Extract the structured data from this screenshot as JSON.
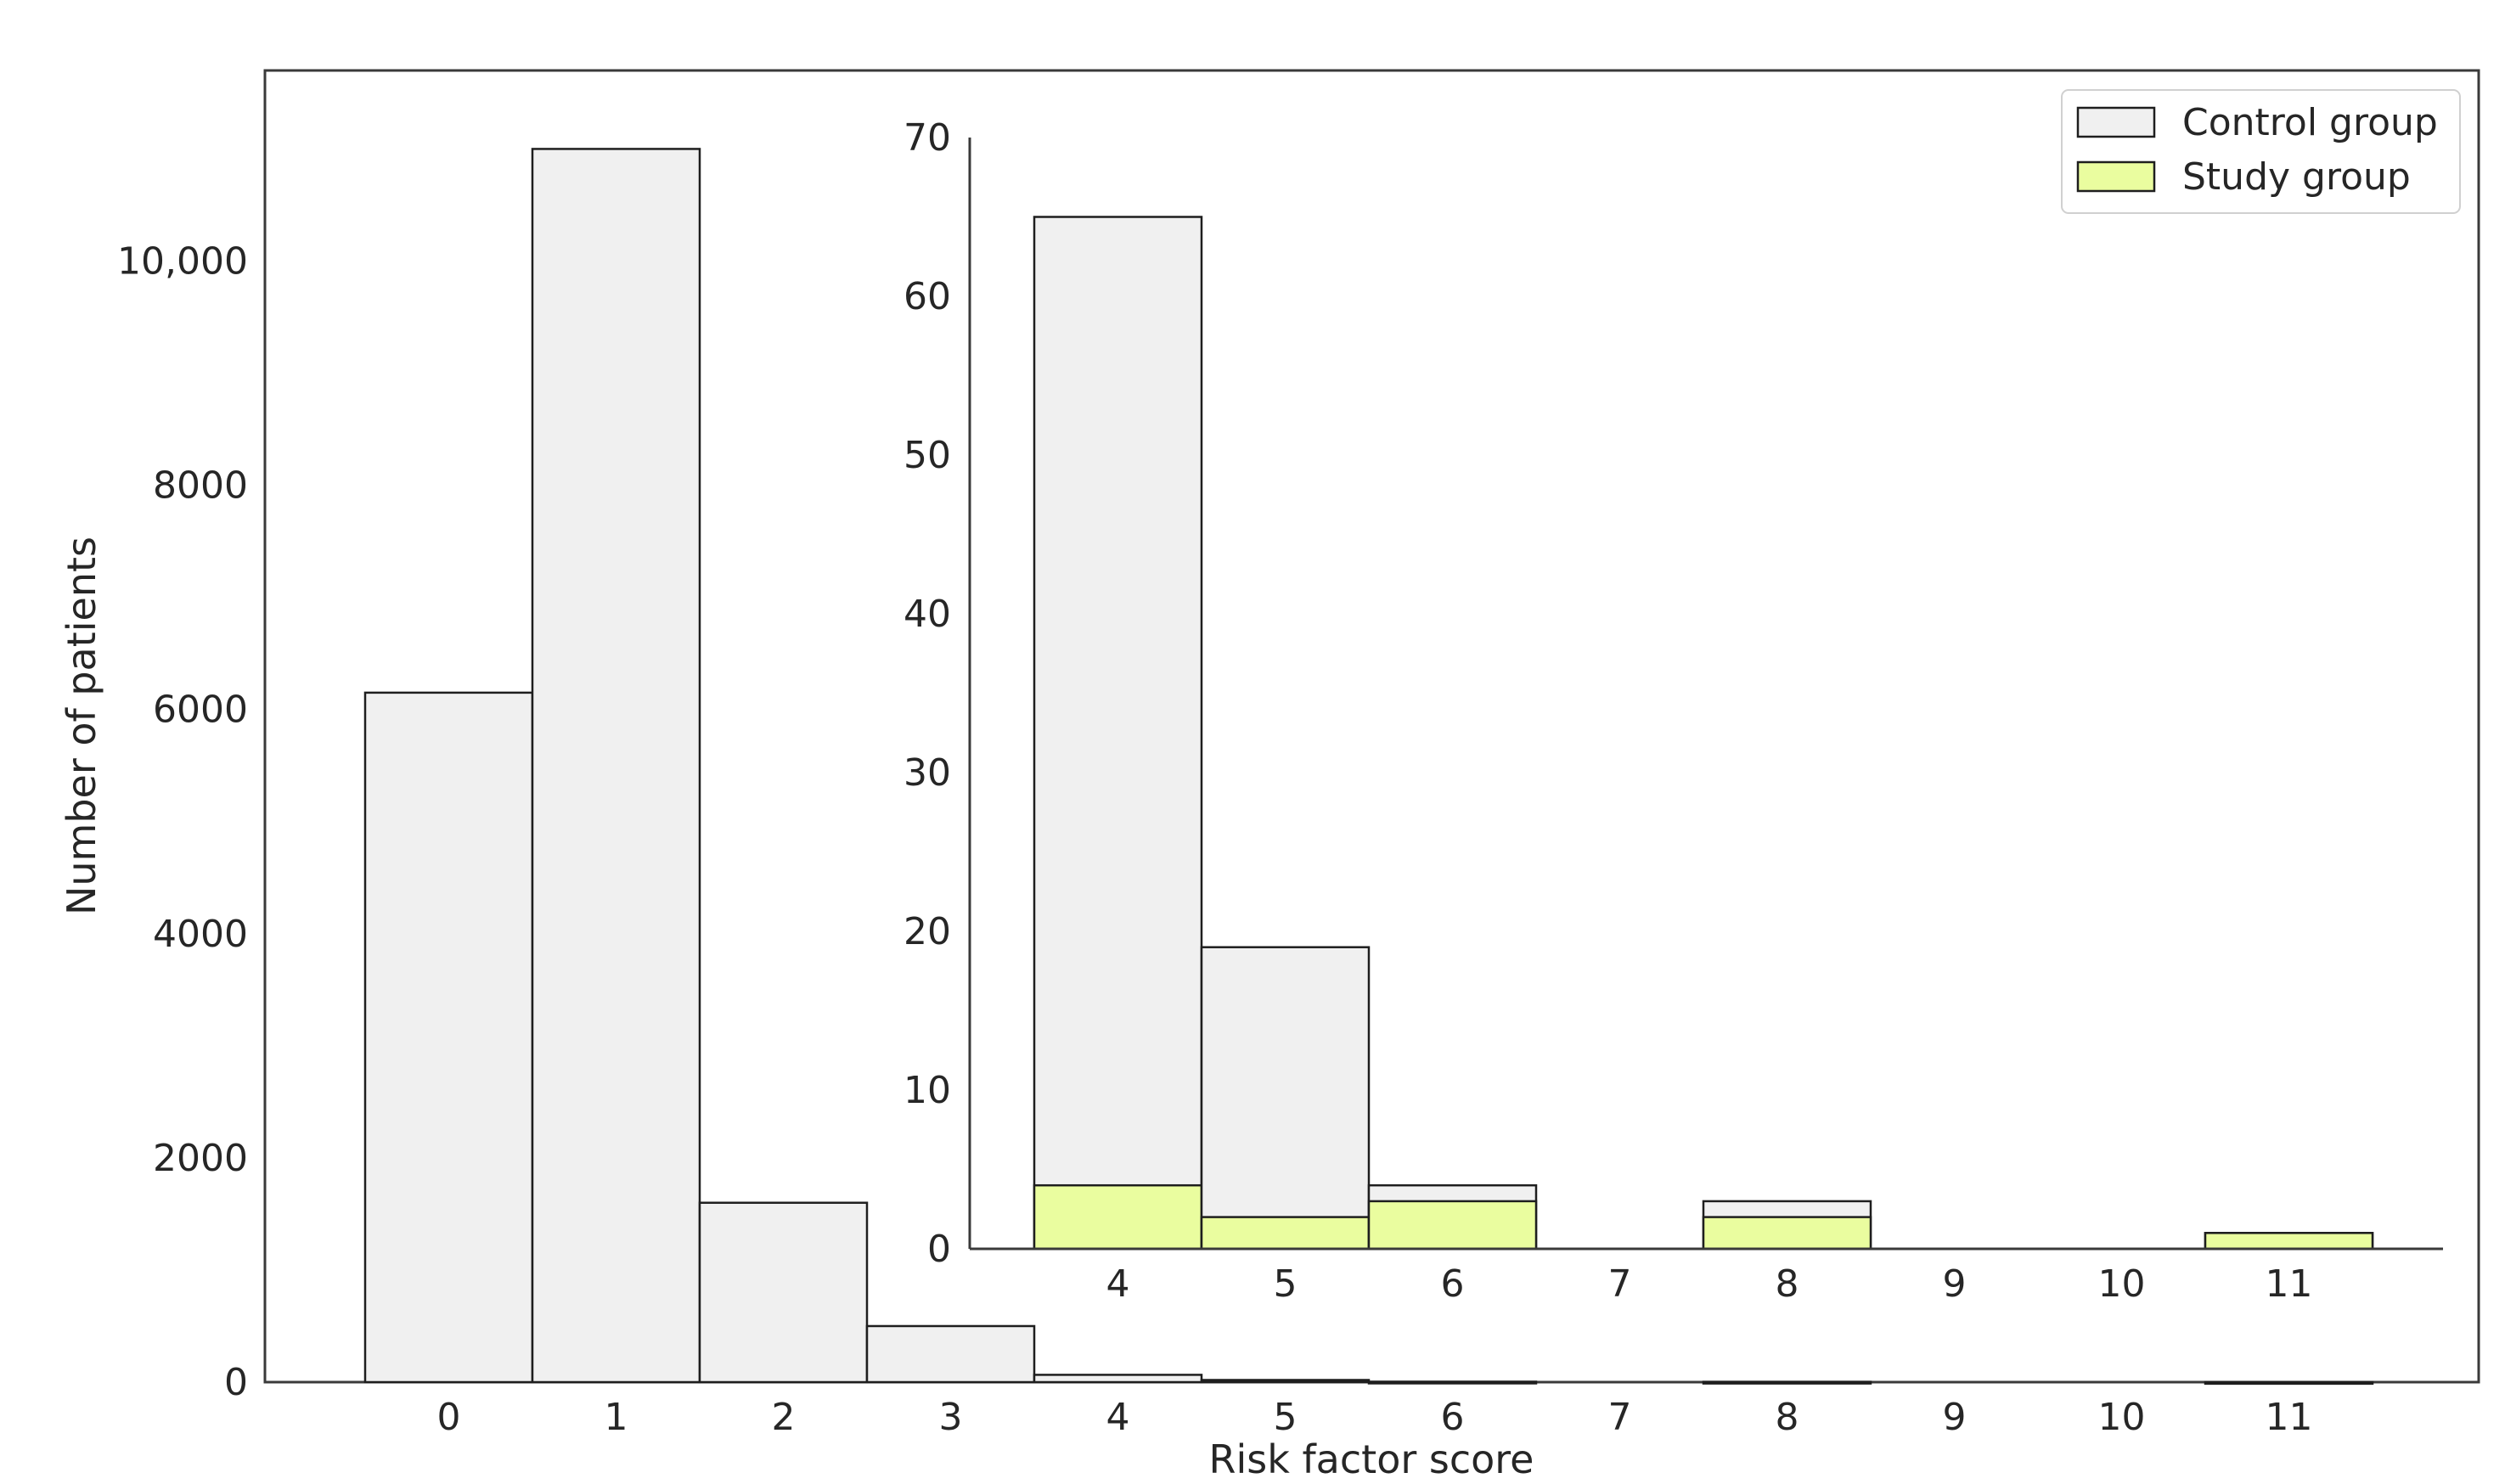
{
  "chart_data": [
    {
      "type": "bar",
      "role": "main",
      "xlabel": "Risk factor score",
      "ylabel": "Number of patients",
      "categories": [
        "0",
        "1",
        "2",
        "3",
        "4",
        "5",
        "6",
        "7",
        "8",
        "9",
        "10",
        "11"
      ],
      "ylim": [
        0,
        11700
      ],
      "yticks": [
        0,
        2000,
        4000,
        6000,
        8000,
        10000
      ],
      "ytick_labels": [
        "0",
        "2000",
        "4000",
        "6000",
        "8000",
        "10,000"
      ],
      "series": [
        {
          "name": "Control group",
          "values": [
            6150,
            11000,
            1600,
            500,
            65,
            19,
            4,
            0,
            3,
            0,
            0,
            1
          ]
        },
        {
          "name": "Study group",
          "values": [
            0,
            0,
            0,
            0,
            4,
            2,
            3,
            0,
            2,
            0,
            0,
            1
          ]
        }
      ],
      "grid": false
    },
    {
      "type": "bar",
      "role": "inset",
      "categories": [
        "4",
        "5",
        "6",
        "7",
        "8",
        "9",
        "10",
        "11"
      ],
      "ylim": [
        0,
        70
      ],
      "yticks": [
        0,
        10,
        20,
        30,
        40,
        50,
        60,
        70
      ],
      "series": [
        {
          "name": "Control group",
          "values": [
            65,
            19,
            4,
            0,
            3,
            0,
            0,
            1
          ]
        },
        {
          "name": "Study group",
          "values": [
            4,
            2,
            3,
            0,
            2,
            0,
            0,
            1
          ]
        }
      ],
      "grid": false
    }
  ],
  "legend": {
    "placement": "top-right",
    "items": [
      {
        "label": "Control group",
        "color": "#f0f0f0"
      },
      {
        "label": "Study group",
        "color": "#eafd9f"
      }
    ]
  },
  "colors": {
    "control": "#f0f0f0",
    "study": "#eafd9f",
    "edge": "#1e1e1e",
    "text": "#262626"
  }
}
